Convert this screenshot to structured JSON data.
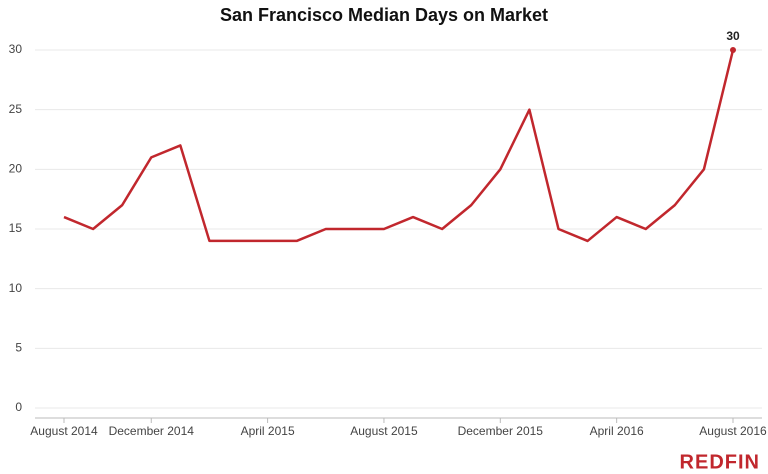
{
  "chart_data": {
    "type": "line",
    "title": "San Francisco Median Days on Market",
    "brand": "REDFIN",
    "categories": [
      "August 2014",
      null,
      null,
      "December 2014",
      null,
      null,
      null,
      "April 2015",
      null,
      null,
      null,
      "August 2015",
      null,
      null,
      null,
      "December 2015",
      null,
      null,
      null,
      "April 2016",
      null,
      null,
      null,
      "August 2016"
    ],
    "series": [
      {
        "name": "Median Days on Market",
        "color": "#c1272d",
        "values": [
          16,
          15,
          17,
          21,
          22,
          14,
          14,
          14,
          14,
          15,
          15,
          15,
          16,
          15,
          17,
          20,
          25,
          15,
          14,
          16,
          15,
          17,
          20,
          30
        ]
      }
    ],
    "ylim": [
      0,
      30
    ],
    "yticks": [
      0,
      5,
      10,
      15,
      20,
      25,
      30
    ],
    "grid": true
  }
}
